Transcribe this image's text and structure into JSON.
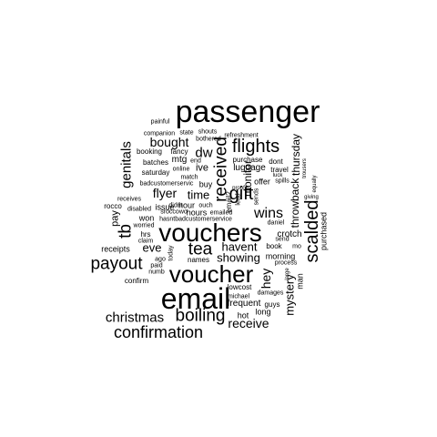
{
  "words": [
    "passenger",
    "email",
    "vouchers",
    "voucher",
    "flights",
    "gift",
    "received",
    "scalded",
    "tb",
    "payout",
    "boiling",
    "confirmation",
    "christmas",
    "tea",
    "wins",
    "dw",
    "genitals",
    "bought",
    "flyer",
    "time",
    "havent",
    "receive",
    "showing",
    "eve",
    "hey",
    "mystery",
    "throwback",
    "thursday",
    "monitor",
    "pay",
    "purchased",
    "luggage",
    "ive",
    "mtg",
    "hour",
    "hours",
    "issue",
    "won",
    "crotch",
    "morning",
    "frequent",
    "long",
    "hot",
    "man",
    "guys",
    "purchase",
    "buy",
    "dont",
    "travel",
    "offer",
    "names",
    "numb",
    "confirm",
    "receipts",
    "rocco",
    "disabled",
    "worried",
    "claim",
    "paid",
    "ago",
    "hrs",
    "today",
    "saturday",
    "booking",
    "batches",
    "companion",
    "painful",
    "state",
    "shouts",
    "bothered",
    "refreshment",
    "fancy",
    "end",
    "ouch",
    "online",
    "match",
    "badcustomerservic",
    "hasntbadcustomerservice",
    "sroccowo",
    "didnt",
    "emailed",
    "email2",
    "sends",
    "lead",
    "receives",
    "lowcost",
    "michael",
    "damages",
    "process",
    "send",
    "book",
    "daniel",
    "mo",
    "large",
    "luck",
    "spills",
    "giving",
    "equally",
    "trousers",
    "proof"
  ],
  "colors": {
    "text": "#000000",
    "background": "#ffffff"
  }
}
